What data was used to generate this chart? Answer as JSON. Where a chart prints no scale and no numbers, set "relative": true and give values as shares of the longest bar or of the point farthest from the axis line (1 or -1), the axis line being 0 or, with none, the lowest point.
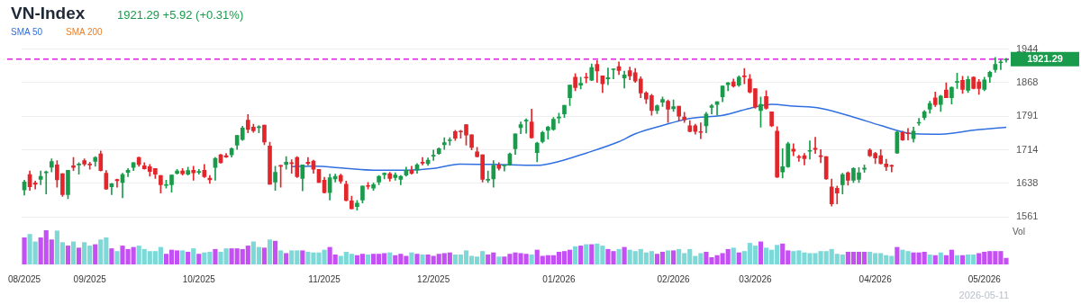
{
  "chart_data": [
    {
      "type": "candlestick",
      "title": "VN-Index",
      "subtitle": "1921.29 +5.92 (+0.31%)",
      "categories": [
        null,
        null,
        null,
        null,
        null,
        null,
        null,
        null,
        null,
        null,
        null,
        null,
        null,
        null,
        null,
        null,
        null,
        null,
        null,
        null,
        null,
        null,
        null,
        null,
        null,
        null,
        null,
        null,
        null,
        null,
        null,
        null,
        null,
        null,
        null,
        null,
        null,
        null,
        null,
        null,
        null,
        null,
        null,
        null,
        null,
        null,
        null,
        null,
        null,
        null,
        null,
        null,
        null,
        null,
        null,
        null,
        null,
        null,
        null,
        null,
        null,
        null,
        null,
        null,
        null,
        null,
        null,
        null,
        null,
        null,
        null,
        null,
        null,
        null,
        null,
        null,
        null,
        null,
        null,
        null,
        null,
        null,
        null,
        null,
        null,
        null,
        null,
        null,
        null,
        null,
        null,
        null,
        null,
        null,
        null,
        null,
        null,
        null,
        null,
        null,
        null,
        null,
        null,
        null,
        null,
        null,
        null,
        null,
        null,
        null,
        null,
        null,
        null,
        null,
        null,
        null,
        null,
        null,
        null,
        null,
        null,
        null,
        null,
        null,
        null,
        null,
        null,
        null,
        null,
        null,
        null,
        null,
        null,
        null,
        null,
        null,
        null,
        null,
        null,
        null,
        null,
        null,
        null,
        null,
        null,
        null,
        null,
        null,
        null,
        null,
        null,
        null,
        null,
        null,
        null,
        null,
        null,
        null,
        null,
        null,
        null,
        null,
        null,
        null,
        null,
        null,
        null,
        null,
        null,
        null,
        null,
        null,
        null,
        null,
        null,
        null,
        null,
        null,
        null,
        null,
        null
      ],
      "ohlc": [
        [
          1623,
          1645,
          1611,
          1641
        ],
        [
          1658,
          1666,
          1622,
          1630
        ],
        [
          1639,
          1643,
          1625,
          1636
        ],
        [
          1647,
          1666,
          1635,
          1654
        ],
        [
          1662,
          1666,
          1614,
          1664
        ],
        [
          1675,
          1694,
          1664,
          1688
        ],
        [
          1680,
          1690,
          1629,
          1646
        ],
        [
          1660,
          1660,
          1608,
          1612
        ],
        [
          1612,
          1668,
          1603,
          1668
        ],
        [
          1678,
          1697,
          1667,
          1674
        ],
        [
          1680,
          1685,
          1659,
          1682
        ],
        [
          1690,
          1694,
          1678,
          1682
        ],
        [
          1682,
          1686,
          1670,
          1680
        ],
        [
          1688,
          1699,
          1677,
          1697
        ],
        [
          1705,
          1712,
          1666,
          1667
        ],
        [
          1661,
          1667,
          1624,
          1625
        ],
        [
          1630,
          1638,
          1612,
          1637
        ],
        [
          1647,
          1648,
          1629,
          1644
        ],
        [
          1640,
          1661,
          1605,
          1658
        ],
        [
          1663,
          1672,
          1653,
          1668
        ],
        [
          1674,
          1685,
          1667,
          1685
        ],
        [
          1697,
          1698,
          1677,
          1681
        ],
        [
          1678,
          1685,
          1670,
          1671
        ],
        [
          1676,
          1681,
          1654,
          1665
        ],
        [
          1672,
          1672,
          1649,
          1659
        ],
        [
          1656,
          1656,
          1616,
          1635
        ],
        [
          1633,
          1645,
          1627,
          1635
        ],
        [
          1635,
          1657,
          1618,
          1657
        ],
        [
          1661,
          1670,
          1659,
          1666
        ],
        [
          1666,
          1672,
          1657,
          1660
        ],
        [
          1659,
          1675,
          1657,
          1667
        ],
        [
          1668,
          1677,
          1645,
          1662
        ],
        [
          1663,
          1670,
          1659,
          1665
        ],
        [
          1668,
          1681,
          1651,
          1653
        ],
        [
          1650,
          1656,
          1638,
          1646
        ],
        [
          1674,
          1697,
          1645,
          1695
        ],
        [
          1703,
          1704,
          1684,
          1685
        ],
        [
          1701,
          1706,
          1697,
          1698
        ],
        [
          1703,
          1719,
          1698,
          1717
        ],
        [
          1725,
          1747,
          1715,
          1747
        ],
        [
          1738,
          1768,
          1736,
          1764
        ],
        [
          1782,
          1795,
          1753,
          1761
        ],
        [
          1766,
          1773,
          1754,
          1758
        ],
        [
          1765,
          1770,
          1753,
          1766
        ],
        [
          1771,
          1771,
          1726,
          1732
        ],
        [
          1723,
          1732,
          1636,
          1636
        ],
        [
          1641,
          1677,
          1622,
          1663
        ],
        [
          1679,
          1679,
          1629,
          1677
        ],
        [
          1681,
          1699,
          1670,
          1686
        ],
        [
          1685,
          1692,
          1661,
          1683
        ],
        [
          1697,
          1699,
          1651,
          1653
        ],
        [
          1649,
          1680,
          1621,
          1680
        ],
        [
          1686,
          1697,
          1680,
          1683
        ],
        [
          1689,
          1691,
          1661,
          1670
        ],
        [
          1670,
          1670,
          1640,
          1640
        ],
        [
          1645,
          1652,
          1616,
          1617
        ],
        [
          1617,
          1659,
          1600,
          1651
        ],
        [
          1648,
          1659,
          1641,
          1654
        ],
        [
          1656,
          1659,
          1638,
          1643
        ],
        [
          1636,
          1643,
          1598,
          1599
        ],
        [
          1598,
          1609,
          1580,
          1580
        ],
        [
          1585,
          1599,
          1577,
          1593
        ],
        [
          1600,
          1632,
          1593,
          1632
        ],
        [
          1633,
          1640,
          1625,
          1631
        ],
        [
          1627,
          1639,
          1622,
          1635
        ],
        [
          1641,
          1656,
          1635,
          1654
        ],
        [
          1658,
          1662,
          1648,
          1661
        ],
        [
          1660,
          1663,
          1643,
          1649
        ],
        [
          1651,
          1662,
          1645,
          1657
        ],
        [
          1647,
          1656,
          1635,
          1654
        ],
        [
          1657,
          1675,
          1654,
          1668
        ],
        [
          1668,
          1677,
          1659,
          1661
        ],
        [
          1668,
          1683,
          1661,
          1680
        ],
        [
          1686,
          1697,
          1680,
          1684
        ],
        [
          1683,
          1696,
          1679,
          1691
        ],
        [
          1700,
          1714,
          1690,
          1701
        ],
        [
          1706,
          1719,
          1704,
          1717
        ],
        [
          1726,
          1742,
          1715,
          1731
        ],
        [
          1735,
          1742,
          1725,
          1736
        ],
        [
          1756,
          1759,
          1736,
          1741
        ],
        [
          1757,
          1759,
          1741,
          1755
        ],
        [
          1772,
          1772,
          1725,
          1748
        ],
        [
          1749,
          1749,
          1714,
          1720
        ],
        [
          1710,
          1720,
          1698,
          1699
        ],
        [
          1703,
          1703,
          1641,
          1647
        ],
        [
          1645,
          1666,
          1640,
          1647
        ],
        [
          1648,
          1690,
          1629,
          1679
        ],
        [
          1680,
          1685,
          1668,
          1672
        ],
        [
          1678,
          1680,
          1666,
          1680
        ],
        [
          1680,
          1707,
          1679,
          1705
        ],
        [
          1717,
          1751,
          1704,
          1751
        ],
        [
          1765,
          1778,
          1751,
          1772
        ],
        [
          1780,
          1785,
          1752,
          1782
        ],
        [
          1778,
          1807,
          1741,
          1742
        ],
        [
          1708,
          1732,
          1687,
          1730
        ],
        [
          1733,
          1757,
          1730,
          1754
        ],
        [
          1759,
          1768,
          1739,
          1766
        ],
        [
          1761,
          1788,
          1759,
          1784
        ],
        [
          1787,
          1798,
          1775,
          1788
        ],
        [
          1796,
          1816,
          1788,
          1816
        ],
        [
          1833,
          1862,
          1815,
          1862
        ],
        [
          1880,
          1888,
          1849,
          1856
        ],
        [
          1862,
          1880,
          1853,
          1866
        ],
        [
          1880,
          1889,
          1867,
          1878
        ],
        [
          1873,
          1910,
          1872,
          1902
        ],
        [
          1909,
          1918,
          1868,
          1894
        ],
        [
          1883,
          1883,
          1845,
          1865
        ],
        [
          1876,
          1901,
          1863,
          1879
        ],
        [
          1897,
          1899,
          1876,
          1899
        ],
        [
          1904,
          1915,
          1886,
          1895
        ],
        [
          1878,
          1894,
          1855,
          1885
        ],
        [
          1895,
          1903,
          1874,
          1883
        ],
        [
          1890,
          1900,
          1868,
          1871
        ],
        [
          1876,
          1881,
          1833,
          1844
        ],
        [
          1844,
          1847,
          1820,
          1830
        ],
        [
          1838,
          1841,
          1793,
          1804
        ],
        [
          1804,
          1817,
          1797,
          1815
        ],
        [
          1823,
          1835,
          1813,
          1829
        ],
        [
          1825,
          1828,
          1777,
          1807
        ],
        [
          1808,
          1828,
          1802,
          1813
        ],
        [
          1814,
          1814,
          1780,
          1791
        ],
        [
          1789,
          1800,
          1777,
          1783
        ],
        [
          1769,
          1781,
          1755,
          1756
        ],
        [
          1769,
          1773,
          1750,
          1756
        ],
        [
          1756,
          1776,
          1740,
          1754
        ],
        [
          1769,
          1800,
          1753,
          1796
        ],
        [
          1811,
          1818,
          1796,
          1815
        ],
        [
          1818,
          1824,
          1793,
          1824
        ],
        [
          1835,
          1860,
          1824,
          1860
        ],
        [
          1863,
          1868,
          1849,
          1867
        ],
        [
          1869,
          1876,
          1857,
          1860
        ],
        [
          1862,
          1883,
          1859,
          1880
        ],
        [
          1883,
          1900,
          1865,
          1881
        ],
        [
          1876,
          1886,
          1844,
          1846
        ],
        [
          1854,
          1854,
          1809,
          1812
        ],
        [
          1804,
          1835,
          1766,
          1818
        ],
        [
          1836,
          1849,
          1807,
          1809
        ],
        [
          1801,
          1801,
          1767,
          1769
        ],
        [
          1757,
          1767,
          1651,
          1652
        ],
        [
          1664,
          1717,
          1650,
          1676
        ],
        [
          1676,
          1732,
          1674,
          1728
        ],
        [
          1716,
          1728,
          1701,
          1711
        ],
        [
          1698,
          1702,
          1688,
          1697
        ],
        [
          1701,
          1706,
          1680,
          1694
        ],
        [
          1711,
          1735,
          1693,
          1713
        ],
        [
          1718,
          1743,
          1706,
          1715
        ],
        [
          1701,
          1715,
          1685,
          1699
        ],
        [
          1699,
          1699,
          1647,
          1648
        ],
        [
          1630,
          1648,
          1586,
          1591
        ],
        [
          1627,
          1632,
          1591,
          1616
        ],
        [
          1635,
          1661,
          1614,
          1658
        ],
        [
          1662,
          1664,
          1634,
          1645
        ],
        [
          1645,
          1674,
          1640,
          1672
        ],
        [
          1647,
          1674,
          1640,
          1662
        ],
        [
          1670,
          1680,
          1663,
          1673
        ],
        [
          1714,
          1717,
          1699,
          1701
        ],
        [
          1706,
          1709,
          1683,
          1696
        ],
        [
          1701,
          1715,
          1682,
          1683
        ],
        [
          1682,
          1693,
          1667,
          1676
        ],
        [
          1678,
          1680,
          1664,
          1677
        ],
        [
          1707,
          1757,
          1706,
          1755
        ],
        [
          1754,
          1757,
          1736,
          1737
        ],
        [
          1752,
          1763,
          1737,
          1751
        ],
        [
          1740,
          1766,
          1732,
          1757
        ],
        [
          1775,
          1786,
          1770,
          1777
        ],
        [
          1788,
          1804,
          1783,
          1801
        ],
        [
          1807,
          1825,
          1798,
          1820
        ],
        [
          1833,
          1846,
          1813,
          1817
        ],
        [
          1818,
          1839,
          1802,
          1837
        ],
        [
          1851,
          1867,
          1833,
          1833
        ],
        [
          1833,
          1858,
          1819,
          1857
        ],
        [
          1868,
          1889,
          1854,
          1870
        ],
        [
          1873,
          1882,
          1843,
          1852
        ],
        [
          1850,
          1882,
          1845,
          1875
        ],
        [
          1880,
          1881,
          1853,
          1854
        ],
        [
          1869,
          1875,
          1841,
          1854
        ],
        [
          1852,
          1880,
          1849,
          1874
        ],
        [
          1881,
          1894,
          1868,
          1891
        ],
        [
          1897,
          1925,
          1891,
          1909
        ],
        [
          1913,
          1922,
          1897,
          1914
        ],
        [
          1919,
          1923,
          1914,
          1921.29
        ]
      ],
      "series": [
        {
          "name": "SMA 50",
          "type": "line",
          "color": "#2f6fe0",
          "values": [
            null,
            null,
            null,
            null,
            null,
            null,
            null,
            null,
            null,
            null,
            null,
            null,
            null,
            null,
            null,
            null,
            null,
            null,
            null,
            null,
            null,
            null,
            null,
            null,
            null,
            null,
            null,
            null,
            null,
            null,
            null,
            null,
            null,
            null,
            null,
            null,
            null,
            null,
            null,
            null,
            null,
            null,
            null,
            null,
            null,
            null,
            null,
            null,
            null,
            1676,
            null,
            null,
            null,
            1677,
            null,
            null,
            null,
            null,
            null,
            1672,
            null,
            null,
            null,
            null,
            1668,
            null,
            null,
            null,
            null,
            null,
            1668,
            null,
            null,
            null,
            null,
            1672,
            null,
            null,
            null,
            null,
            1682,
            null,
            null,
            null,
            null,
            null,
            1681,
            null,
            null,
            null,
            null,
            null,
            null,
            null,
            1679,
            null,
            null,
            null,
            1688,
            null,
            null,
            null,
            null,
            1707,
            null,
            null,
            null,
            null,
            null,
            1733,
            null,
            null,
            1751,
            null,
            null,
            null,
            null,
            1770,
            null,
            null,
            null,
            null,
            1786,
            null,
            null,
            null,
            null,
            null,
            1793,
            null,
            null,
            null,
            null,
            1809,
            null,
            null,
            null,
            1818,
            null,
            null,
            null,
            1814,
            null,
            null,
            null,
            null,
            1809,
            null,
            null,
            null,
            null,
            null,
            1789,
            null,
            null,
            null,
            null,
            1770,
            null,
            null,
            null,
            null,
            null,
            1751,
            null,
            null,
            null,
            null,
            1750,
            null,
            null,
            null,
            null,
            null,
            1759,
            null,
            null,
            null,
            null,
            null,
            1766
          ]
        },
        {
          "name": "SMA 200",
          "type": "line",
          "color": "#e8802c",
          "values": [
            null,
            null,
            null,
            null,
            null,
            null,
            null,
            null,
            null,
            null,
            null,
            null,
            null,
            null,
            null,
            null,
            null,
            null,
            null,
            null,
            null,
            null,
            null,
            null,
            null,
            null,
            null,
            null,
            null,
            null,
            null,
            null,
            null,
            null,
            null,
            null,
            null,
            null,
            null,
            null,
            null,
            null,
            null,
            null,
            null,
            null,
            null,
            null,
            null,
            null,
            null,
            null,
            null,
            null,
            null,
            null,
            null,
            null,
            null,
            null,
            null,
            null,
            null,
            null,
            null,
            null,
            null,
            null,
            null,
            null,
            null,
            null,
            null,
            null,
            null,
            null,
            null,
            null,
            null,
            null,
            null,
            null,
            null,
            null,
            null,
            null,
            null,
            null,
            null,
            null,
            null,
            null,
            null,
            null,
            null,
            null,
            null,
            null,
            null,
            null,
            null,
            null,
            null,
            null,
            null,
            null,
            null,
            null,
            null,
            null,
            null,
            null,
            null,
            null,
            null,
            null,
            null,
            null,
            null,
            null,
            null,
            null,
            null,
            null,
            null,
            null,
            null,
            null,
            null,
            null,
            null,
            null,
            null,
            null,
            null,
            null,
            null,
            null,
            null,
            null,
            null,
            null,
            null,
            null,
            null,
            null,
            null,
            null,
            null,
            null,
            null,
            null,
            null,
            null,
            null,
            null,
            null,
            null,
            null,
            null,
            null,
            null,
            null,
            null,
            null,
            null,
            null,
            null,
            null,
            null,
            null,
            null,
            null,
            null,
            null,
            null,
            null,
            null,
            null,
            null,
            null
          ]
        }
      ],
      "ref_lines": [
        {
          "axis": "y",
          "value": 1921.29,
          "label": "1921.29",
          "color": "#e020e0",
          "line_style": "dashed"
        }
      ],
      "ylim": [
        1561,
        1944
      ],
      "yticks": [
        1561,
        1638,
        1714,
        1791,
        1868,
        1944
      ],
      "grid": "y",
      "legend": "top left",
      "tick_labels": "y"
    },
    {
      "type": "bar",
      "relative": true,
      "ylabel": "Vol",
      "tick_labels": "x",
      "categories": [
        "08/2025",
        null,
        null,
        null,
        null,
        null,
        null,
        null,
        null,
        null,
        null,
        null,
        "09/2025",
        null,
        null,
        null,
        null,
        null,
        null,
        null,
        null,
        null,
        null,
        null,
        null,
        null,
        null,
        null,
        null,
        null,
        null,
        null,
        "10/2025",
        null,
        null,
        null,
        null,
        null,
        null,
        null,
        null,
        null,
        null,
        null,
        null,
        null,
        null,
        null,
        null,
        null,
        null,
        null,
        null,
        null,
        null,
        "11/2025",
        null,
        null,
        null,
        null,
        null,
        null,
        null,
        null,
        null,
        null,
        null,
        null,
        null,
        null,
        null,
        null,
        null,
        null,
        null,
        "12/2025",
        null,
        null,
        null,
        null,
        null,
        null,
        null,
        null,
        null,
        null,
        null,
        null,
        null,
        null,
        null,
        null,
        null,
        null,
        null,
        null,
        null,
        null,
        "01/2026",
        null,
        null,
        null,
        null,
        null,
        null,
        null,
        null,
        null,
        null,
        null,
        null,
        null,
        null,
        null,
        null,
        null,
        null,
        null,
        null,
        "02/2026",
        null,
        null,
        null,
        null,
        null,
        null,
        null,
        null,
        null,
        null,
        null,
        null,
        null,
        null,
        "03/2026",
        null,
        null,
        null,
        null,
        null,
        null,
        null,
        null,
        null,
        null,
        null,
        null,
        null,
        null,
        null,
        null,
        null,
        null,
        null,
        null,
        null,
        "04/2026",
        null,
        null,
        null,
        null,
        null,
        null,
        null,
        null,
        null,
        null,
        null,
        null,
        null,
        null,
        null,
        null,
        null,
        null,
        null,
        "05/2026",
        null,
        null,
        null,
        null
      ],
      "values": [
        0.79,
        0.89,
        0.67,
        0.79,
        1,
        0.73,
        0.99,
        0.65,
        0.55,
        0.67,
        0.49,
        0.65,
        0.55,
        0.59,
        0.73,
        0.79,
        0.47,
        0.39,
        0.55,
        0.45,
        0.51,
        0.55,
        0.45,
        0.39,
        0.39,
        0.51,
        0.31,
        0.43,
        0.41,
        0.41,
        0.37,
        0.47,
        0.31,
        0.35,
        0.37,
        0.45,
        0.37,
        0.47,
        0.47,
        0.47,
        0.45,
        0.55,
        0.67,
        0.51,
        0.49,
        0.73,
        0.69,
        0.41,
        0.33,
        0.41,
        0.41,
        0.41,
        0.37,
        0.35,
        0.35,
        0.43,
        0.51,
        0.29,
        0.25,
        0.37,
        0.31,
        0.27,
        0.31,
        0.29,
        0.31,
        0.31,
        0.33,
        0.35,
        0.27,
        0.31,
        0.25,
        0.35,
        0.31,
        0.29,
        0.29,
        0.25,
        0.31,
        0.33,
        0.35,
        0.29,
        0.29,
        0.41,
        0.25,
        0.23,
        0.39,
        0.29,
        0.35,
        0.23,
        0.23,
        0.31,
        0.35,
        0.33,
        0.31,
        0.29,
        0.43,
        0.25,
        0.27,
        0.27,
        0.37,
        0.39,
        0.43,
        0.53,
        0.55,
        0.59,
        0.59,
        0.61,
        0.55,
        0.45,
        0.39,
        0.45,
        0.51,
        0.43,
        0.39,
        0.45,
        0.35,
        0.39,
        0.31,
        0.37,
        0.41,
        0.41,
        0.45,
        0.33,
        0.45,
        0.25,
        0.33,
        0.37,
        0.21,
        0.27,
        0.33,
        0.45,
        0.49,
        0.35,
        0.39,
        0.63,
        0.55,
        0.67,
        0.49,
        0.43,
        0.57,
        0.61,
        0.41,
        0.39,
        0.41,
        0.35,
        0.33,
        0.33,
        0.39,
        0.39,
        0.45,
        0.31,
        0.29,
        0.37,
        0.37,
        0.37,
        0.37,
        0.37,
        0.33,
        0.33,
        0.27,
        0.25,
        0.51,
        0.43,
        0.39,
        0.35,
        0.35,
        0.37,
        0.29,
        0.27,
        0.35,
        0.27,
        0.43,
        0.27,
        0.27,
        0.29,
        0.29,
        0.33,
        0.37,
        0.39,
        0.39,
        0.39,
        0.19
      ],
      "colors": [
        "#c44ff2",
        "#7dd8d8",
        "#7dd8d8",
        "#c44ff2",
        "#c44ff2",
        "#c44ff2",
        "#7dd8d8",
        "#7dd8d8",
        "#c44ff2",
        "#7dd8d8",
        "#c44ff2",
        "#7dd8d8",
        "#7dd8d8",
        "#c44ff2",
        "#7dd8d8",
        "#7dd8d8",
        "#c44ff2",
        "#7dd8d8",
        "#c44ff2",
        "#c44ff2",
        "#c44ff2",
        "#7dd8d8",
        "#7dd8d8",
        "#7dd8d8",
        "#7dd8d8",
        "#7dd8d8",
        "#c44ff2",
        "#c44ff2",
        "#c44ff2",
        "#7dd8d8",
        "#c44ff2",
        "#7dd8d8",
        "#c44ff2",
        "#7dd8d8",
        "#7dd8d8",
        "#c44ff2",
        "#7dd8d8",
        "#7dd8d8",
        "#c44ff2",
        "#c44ff2",
        "#c44ff2",
        "#c44ff2",
        "#7dd8d8",
        "#7dd8d8",
        "#c44ff2",
        "#7dd8d8",
        "#c44ff2",
        "#7dd8d8",
        "#c44ff2",
        "#7dd8d8",
        "#7dd8d8",
        "#c44ff2",
        "#7dd8d8",
        "#7dd8d8",
        "#7dd8d8",
        "#7dd8d8",
        "#c44ff2",
        "#c44ff2",
        "#7dd8d8",
        "#7dd8d8",
        "#7dd8d8",
        "#c44ff2",
        "#c44ff2",
        "#7dd8d8",
        "#c44ff2",
        "#c44ff2",
        "#c44ff2",
        "#7dd8d8",
        "#c44ff2",
        "#c44ff2",
        "#c44ff2",
        "#7dd8d8",
        "#c44ff2",
        "#7dd8d8",
        "#c44ff2",
        "#c44ff2",
        "#c44ff2",
        "#c44ff2",
        "#c44ff2",
        "#7dd8d8",
        "#7dd8d8",
        "#7dd8d8",
        "#7dd8d8",
        "#7dd8d8",
        "#7dd8d8",
        "#c44ff2",
        "#c44ff2",
        "#7dd8d8",
        "#c44ff2",
        "#c44ff2",
        "#c44ff2",
        "#c44ff2",
        "#c44ff2",
        "#7dd8d8",
        "#c44ff2",
        "#c44ff2",
        "#c44ff2",
        "#c44ff2",
        "#c44ff2",
        "#c44ff2",
        "#c44ff2",
        "#7dd8d8",
        "#c44ff2",
        "#7dd8d8",
        "#c44ff2",
        "#7dd8d8",
        "#7dd8d8",
        "#c44ff2",
        "#c44ff2",
        "#7dd8d8",
        "#c44ff2",
        "#7dd8d8",
        "#7dd8d8",
        "#7dd8d8",
        "#7dd8d8",
        "#7dd8d8",
        "#c44ff2",
        "#c44ff2",
        "#7dd8d8",
        "#c44ff2",
        "#7dd8d8",
        "#7dd8d8",
        "#7dd8d8",
        "#7dd8d8",
        "#7dd8d8",
        "#c44ff2",
        "#c44ff2",
        "#c44ff2",
        "#c44ff2",
        "#c44ff2",
        "#7dd8d8",
        "#c44ff2",
        "#7dd8d8",
        "#7dd8d8",
        "#7dd8d8",
        "#c44ff2",
        "#7dd8d8",
        "#7dd8d8",
        "#7dd8d8",
        "#c44ff2",
        "#c44ff2",
        "#7dd8d8",
        "#7dd8d8",
        "#7dd8d8",
        "#7dd8d8",
        "#7dd8d8",
        "#7dd8d8",
        "#7dd8d8",
        "#7dd8d8",
        "#7dd8d8",
        "#7dd8d8",
        "#c44ff2",
        "#c44ff2",
        "#c44ff2",
        "#c44ff2",
        "#7dd8d8",
        "#7dd8d8",
        "#7dd8d8",
        "#7dd8d8",
        "#7dd8d8",
        "#c44ff2",
        "#7dd8d8",
        "#7dd8d8",
        "#c44ff2",
        "#c44ff2",
        "#c44ff2",
        "#7dd8d8",
        "#c44ff2",
        "#7dd8d8",
        "#c44ff2",
        "#c44ff2",
        "#7dd8d8",
        "#c44ff2",
        "#7dd8d8",
        "#7dd8d8",
        "#c44ff2",
        "#c44ff2",
        "#c44ff2",
        "#c44ff2",
        "#c44ff2",
        "#c44ff2"
      ],
      "annotations": [
        "2026-05-11"
      ]
    }
  ]
}
